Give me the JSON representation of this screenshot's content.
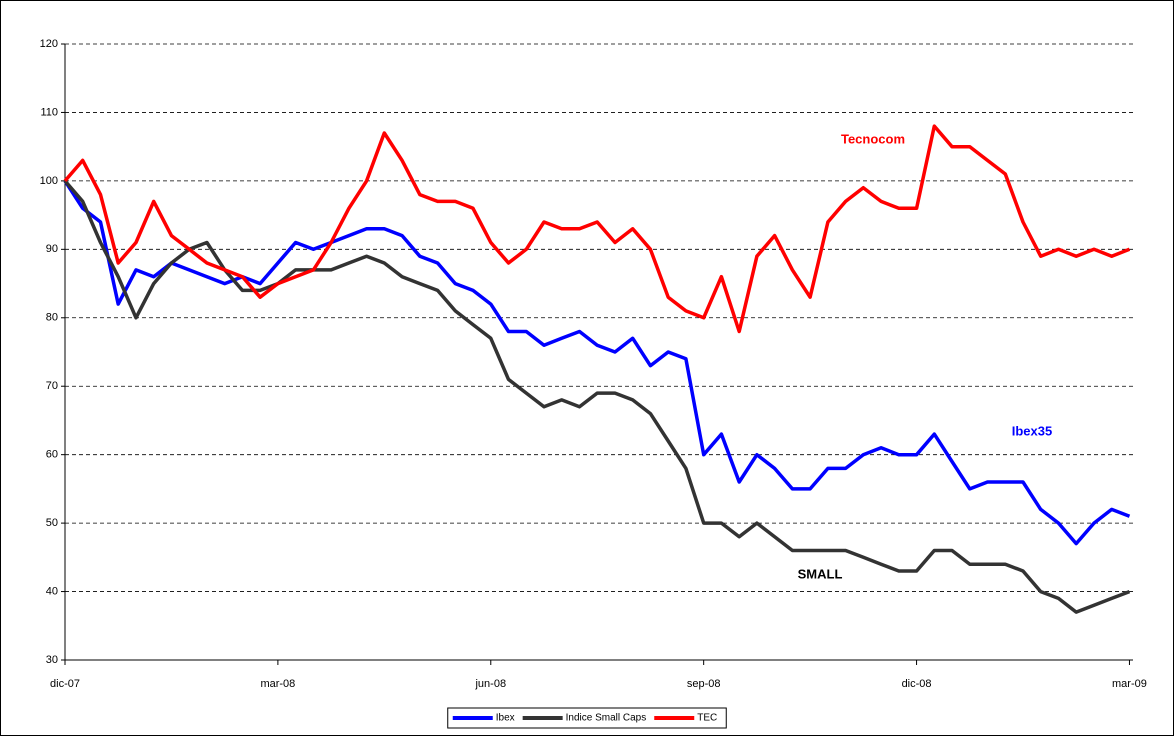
{
  "chart_data": {
    "type": "line",
    "x": [
      0,
      0.25,
      0.5,
      0.75,
      1,
      1.25,
      1.5,
      1.75,
      2,
      2.25,
      2.5,
      2.75,
      3,
      3.25,
      3.5,
      3.75,
      4,
      4.25,
      4.5,
      4.75,
      5,
      5.25,
      5.5,
      5.75,
      6,
      6.25,
      6.5,
      6.75,
      7,
      7.25,
      7.5,
      7.75,
      8,
      8.25,
      8.5,
      8.75,
      9,
      9.25,
      9.5,
      9.75,
      10,
      10.25,
      10.5,
      10.75,
      11,
      11.25,
      11.5,
      11.75,
      12,
      12.25,
      12.5,
      12.75,
      13,
      13.25,
      13.5,
      13.75,
      14,
      14.25,
      14.5,
      14.75,
      15
    ],
    "series": [
      {
        "name": "Ibex",
        "color": "#0000ff",
        "values": [
          100,
          96,
          94,
          82,
          87,
          86,
          88,
          87,
          86,
          85,
          86,
          85,
          88,
          91,
          90,
          91,
          92,
          93,
          93,
          92,
          89,
          88,
          85,
          84,
          82,
          78,
          78,
          76,
          77,
          78,
          76,
          75,
          77,
          73,
          75,
          74,
          60,
          63,
          56,
          60,
          58,
          55,
          55,
          58,
          58,
          60,
          61,
          60,
          60,
          63,
          59,
          55,
          56,
          56,
          56,
          52,
          50,
          47,
          50,
          52,
          51
        ]
      },
      {
        "name": "Indice Small Caps",
        "color": "#333333",
        "values": [
          100,
          97,
          91,
          86,
          80,
          85,
          88,
          90,
          91,
          87,
          84,
          84,
          85,
          87,
          87,
          87,
          88,
          89,
          88,
          86,
          85,
          84,
          81,
          79,
          77,
          71,
          69,
          67,
          68,
          67,
          69,
          69,
          68,
          66,
          62,
          58,
          50,
          50,
          48,
          50,
          48,
          46,
          46,
          46,
          46,
          45,
          44,
          43,
          43,
          46,
          46,
          44,
          44,
          44,
          43,
          40,
          39,
          37,
          38,
          39,
          40
        ]
      },
      {
        "name": "TEC",
        "color": "#ff0000",
        "values": [
          100,
          103,
          98,
          88,
          91,
          97,
          92,
          90,
          88,
          87,
          86,
          83,
          85,
          86,
          87,
          91,
          96,
          100,
          107,
          103,
          98,
          97,
          97,
          96,
          91,
          88,
          90,
          94,
          93,
          93,
          94,
          91,
          93,
          90,
          83,
          81,
          80,
          86,
          78,
          89,
          92,
          87,
          83,
          94,
          97,
          99,
          97,
          96,
          96,
          108,
          105,
          105,
          103,
          101,
          94,
          89,
          90,
          89,
          90,
          89,
          90
        ]
      }
    ],
    "xlim": [
      0,
      15.05
    ],
    "xticks": [
      {
        "value": 0,
        "label": "dic-07"
      },
      {
        "value": 3,
        "label": "mar-08"
      },
      {
        "value": 6,
        "label": "jun-08"
      },
      {
        "value": 9,
        "label": "sep-08"
      },
      {
        "value": 12,
        "label": "dic-08"
      },
      {
        "value": 15,
        "label": "mar-09"
      }
    ],
    "ylim": [
      30,
      120
    ],
    "yticks": [
      30,
      40,
      50,
      60,
      70,
      80,
      90,
      100,
      110,
      120
    ],
    "grid": true,
    "legend": "bottom",
    "annotations": [
      {
        "text": "Tecnocom",
        "color": "#ff0000"
      },
      {
        "text": "Ibex35",
        "color": "#0000ff"
      },
      {
        "text": "SMALL",
        "color": "#000000"
      }
    ]
  }
}
